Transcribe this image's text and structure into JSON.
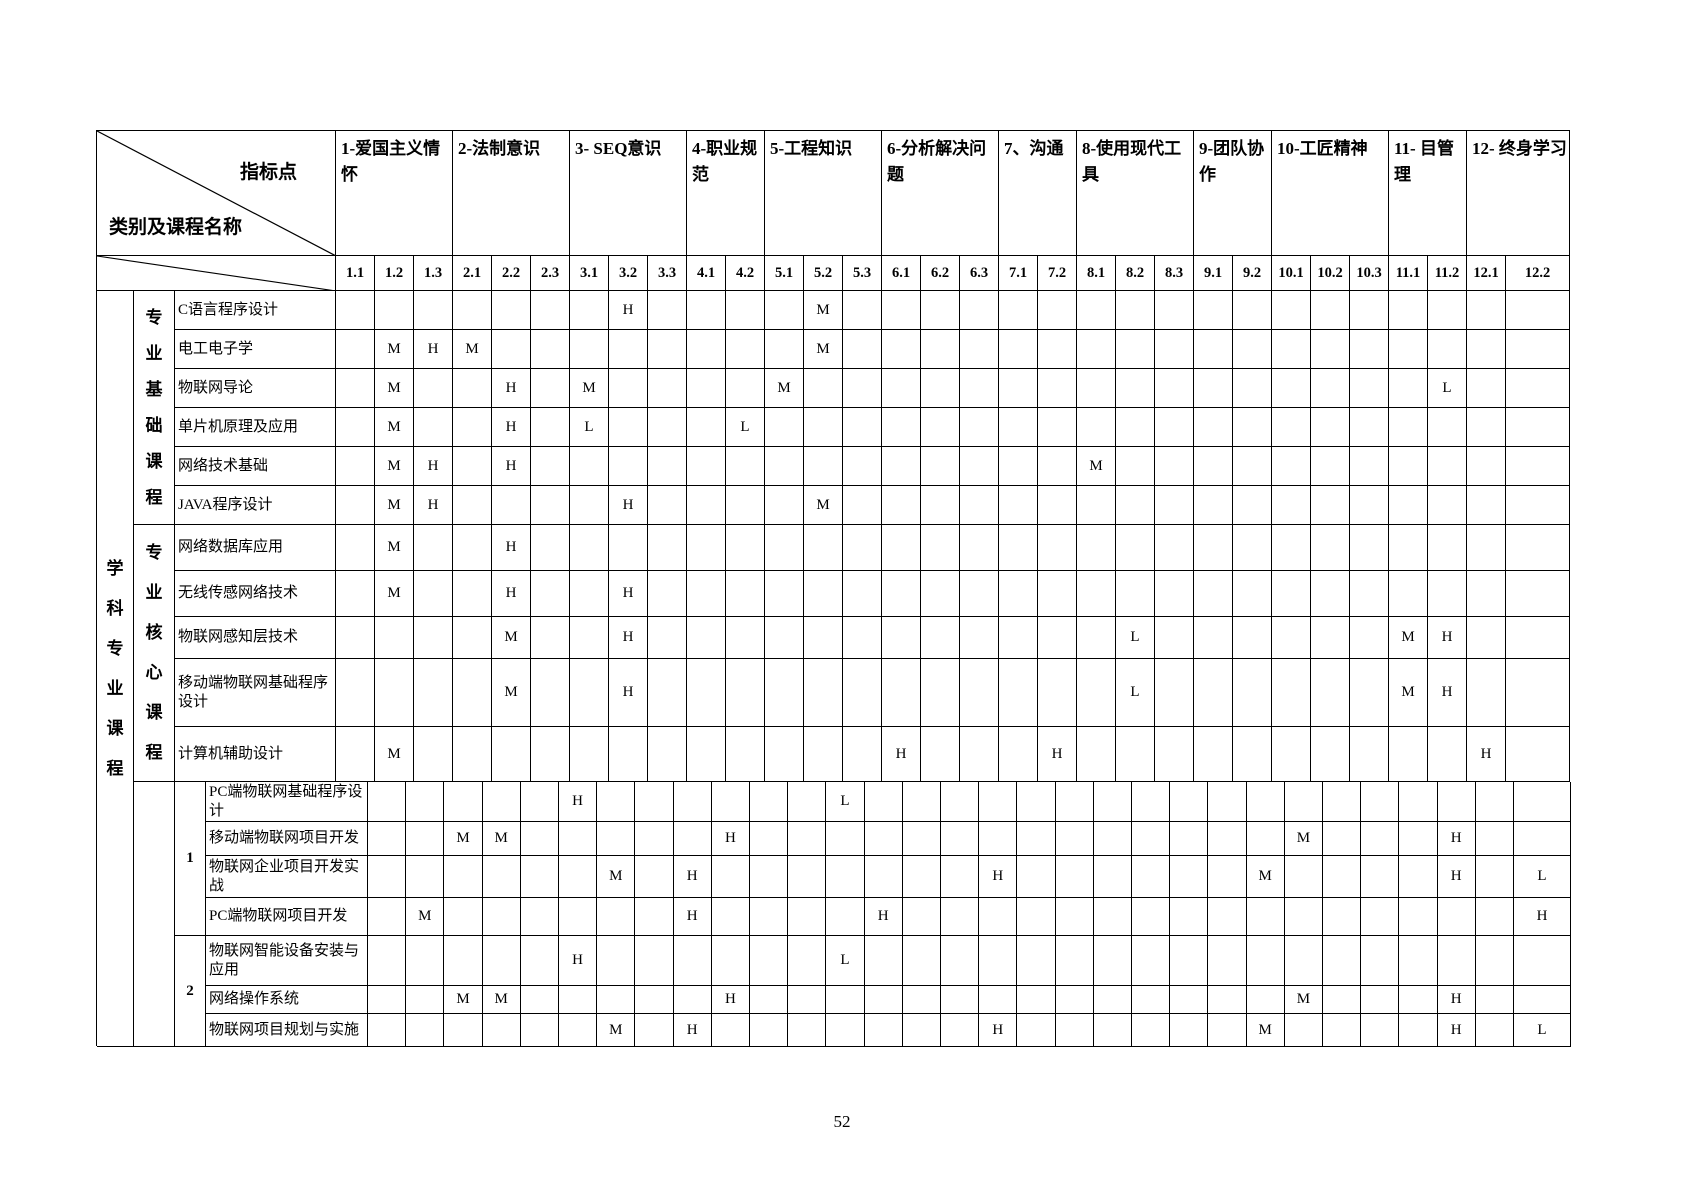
{
  "page_number": "52",
  "corner": {
    "top_right_label": "指标点",
    "bottom_left_label": "类别及课程名称"
  },
  "indicator_groups": [
    {
      "label": "1-爱国主义情怀",
      "span": 3
    },
    {
      "label": "2-法制意识",
      "span": 3
    },
    {
      "label": "3- SEQ意识",
      "span": 3
    },
    {
      "label": "4-职业规范",
      "span": 2
    },
    {
      "label": "5-工程知识",
      "span": 3
    },
    {
      "label": "6-分析解决问题",
      "span": 3
    },
    {
      "label": "7、沟通",
      "span": 2
    },
    {
      "label": "8-使用现代工具",
      "span": 3
    },
    {
      "label": "9-团队协作",
      "span": 2
    },
    {
      "label": "10-工匠精神",
      "span": 3
    },
    {
      "label": "11- 目管理",
      "span": 2
    },
    {
      "label": "12- 终身学习",
      "span": 2
    }
  ],
  "indicator_points": [
    "1.1",
    "1.2",
    "1.3",
    "2.1",
    "2.2",
    "2.3",
    "3.1",
    "3.2",
    "3.3",
    "4.1",
    "4.2",
    "5.1",
    "5.2",
    "5.3",
    "6.1",
    "6.2",
    "6.3",
    "7.1",
    "7.2",
    "8.1",
    "8.2",
    "8.3",
    "9.1",
    "9.2",
    "10.1",
    "10.2",
    "10.3",
    "11.1",
    "11.2",
    "12.1",
    "12.2"
  ],
  "category_label": "学科专业课程",
  "sections": [
    {
      "label": "专业基础课程",
      "courses": [
        {
          "name": "C语言程序设计",
          "values": {
            "3.2": "H",
            "5.2": "M"
          }
        },
        {
          "name": "电工电子学",
          "values": {
            "1.2": "M",
            "1.3": "H",
            "2.1": "M",
            "5.2": "M"
          }
        },
        {
          "name": "物联网导论",
          "values": {
            "1.2": "M",
            "2.2": "H",
            "3.1": "M",
            "5.1": "M",
            "11.2": "L"
          }
        },
        {
          "name": "单片机原理及应用",
          "values": {
            "1.2": "M",
            "2.2": "H",
            "3.1": "L",
            "4.2": "L"
          }
        },
        {
          "name": "网络技术基础",
          "values": {
            "1.2": "M",
            "1.3": "H",
            "2.2": "H",
            "8.1": "M"
          }
        },
        {
          "name": "JAVA程序设计",
          "values": {
            "1.2": "M",
            "1.3": "H",
            "3.2": "H",
            "5.2": "M"
          }
        }
      ]
    },
    {
      "label": "专业核心课程",
      "courses": [
        {
          "name": "网络数据库应用",
          "values": {
            "1.2": "M",
            "2.2": "H"
          }
        },
        {
          "name": "无线传感网络技术",
          "values": {
            "1.2": "M",
            "2.2": "H",
            "3.2": "H"
          }
        },
        {
          "name": "物联网感知层技术",
          "values": {
            "2.2": "M",
            "3.2": "H",
            "8.2": "L",
            "11.1": "M",
            "11.2": "H"
          }
        },
        {
          "name": "移动端物联网基础程序设计",
          "values": {
            "2.2": "M",
            "3.2": "H",
            "8.2": "L",
            "11.1": "M",
            "11.2": "H"
          }
        },
        {
          "name": "计算机辅助设计",
          "values": {
            "1.2": "M",
            "6.1": "H",
            "7.2": "H",
            "12.1": "H"
          }
        }
      ]
    }
  ],
  "course_groups": [
    {
      "label": "1",
      "courses": [
        {
          "name": "PC端物联网基础程序设计",
          "values": {
            "2.3": "H",
            "5.2": "L"
          }
        },
        {
          "name": "移动端物联网项目开发",
          "values": {
            "1.3": "M",
            "2.1": "M",
            "4.1": "H",
            "10.1": "M",
            "11.2": "H"
          }
        },
        {
          "name": "物联网企业项目开发实战",
          "values": {
            "3.1": "M",
            "3.3": "H",
            "6.3": "H",
            "9.2": "M",
            "11.2": "H",
            "12.2": "L"
          }
        },
        {
          "name": "PC端物联网项目开发",
          "values": {
            "1.2": "M",
            "3.3": "H",
            "5.3": "H",
            "12.2": "H"
          }
        }
      ]
    },
    {
      "label": "2",
      "courses": [
        {
          "name": "物联网智能设备安装与应用",
          "values": {
            "2.3": "H",
            "5.2": "L"
          }
        },
        {
          "name": "网络操作系统",
          "values": {
            "1.3": "M",
            "2.1": "M",
            "4.1": "H",
            "10.1": "M",
            "11.2": "H"
          }
        },
        {
          "name": "物联网项目规划与实施",
          "values": {
            "3.1": "M",
            "3.3": "H",
            "6.3": "H",
            "9.2": "M",
            "11.2": "H",
            "12.2": "L"
          }
        }
      ]
    }
  ]
}
